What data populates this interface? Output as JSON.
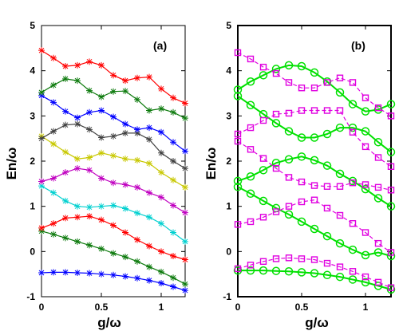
{
  "chart_data": [
    {
      "type": "line",
      "panel_label": "(a)",
      "xlabel": "g/ω",
      "ylabel": "En/ω",
      "xlim": [
        0,
        1.2
      ],
      "ylim": [
        -1,
        5
      ],
      "xticks": [
        "0",
        "0.5",
        "1"
      ],
      "yticks": [
        "-1",
        "0",
        "1",
        "2",
        "3",
        "4",
        "5"
      ],
      "x": [
        0,
        0.1,
        0.2,
        0.3,
        0.4,
        0.5,
        0.6,
        0.7,
        0.8,
        0.9,
        1.0,
        1.1,
        1.2
      ],
      "series": [
        {
          "color": "#0000ff",
          "marker": "star",
          "values": [
            -0.47,
            -0.46,
            -0.46,
            -0.47,
            -0.48,
            -0.5,
            -0.52,
            -0.55,
            -0.59,
            -0.64,
            -0.7,
            -0.78,
            -0.86
          ]
        },
        {
          "color": "#0c7a0c",
          "marker": "star",
          "values": [
            0.45,
            0.38,
            0.3,
            0.22,
            0.14,
            0.06,
            -0.04,
            -0.12,
            -0.22,
            -0.34,
            -0.45,
            -0.58,
            -0.72
          ]
        },
        {
          "color": "#ff0000",
          "marker": "star",
          "values": [
            0.52,
            0.62,
            0.74,
            0.76,
            0.78,
            0.7,
            0.58,
            0.42,
            0.26,
            0.12,
            0.0,
            -0.1,
            -0.18
          ]
        },
        {
          "color": "#00d0d0",
          "marker": "star",
          "values": [
            1.45,
            1.3,
            1.12,
            1.0,
            0.98,
            1.0,
            1.02,
            0.95,
            0.85,
            0.76,
            0.62,
            0.42,
            0.22
          ]
        },
        {
          "color": "#c000c0",
          "marker": "star",
          "values": [
            1.55,
            1.62,
            1.75,
            1.84,
            1.8,
            1.62,
            1.52,
            1.48,
            1.42,
            1.3,
            1.2,
            1.02,
            0.86
          ]
        },
        {
          "color": "#c8c800",
          "marker": "star",
          "values": [
            2.55,
            2.38,
            2.2,
            2.05,
            2.08,
            2.18,
            2.12,
            2.05,
            2.02,
            1.95,
            1.75,
            1.58,
            1.42
          ]
        },
        {
          "color": "#404040",
          "marker": "star",
          "values": [
            2.5,
            2.66,
            2.8,
            2.82,
            2.7,
            2.52,
            2.55,
            2.62,
            2.62,
            2.48,
            2.18,
            2.0,
            1.84
          ]
        },
        {
          "color": "#0000ff",
          "marker": "star",
          "values": [
            3.45,
            3.3,
            3.1,
            2.96,
            3.08,
            3.12,
            2.98,
            2.82,
            2.7,
            2.74,
            2.64,
            2.42,
            2.22
          ]
        },
        {
          "color": "#0c7a0c",
          "marker": "star",
          "values": [
            3.52,
            3.68,
            3.82,
            3.78,
            3.56,
            3.42,
            3.54,
            3.55,
            3.36,
            3.12,
            3.16,
            3.08,
            2.95
          ]
        },
        {
          "color": "#ff0000",
          "marker": "star",
          "values": [
            4.45,
            4.28,
            4.1,
            4.12,
            4.2,
            4.12,
            3.9,
            3.78,
            3.84,
            3.86,
            3.6,
            3.4,
            3.28
          ]
        }
      ]
    },
    {
      "type": "line",
      "panel_label": "(b)",
      "xlabel": "g/ω",
      "ylabel": "En/ω",
      "xlim": [
        0,
        1.2
      ],
      "ylim": [
        -1,
        5
      ],
      "xticks": [
        "0",
        "0.5",
        "1"
      ],
      "yticks": [
        "-1",
        "0",
        "1",
        "2",
        "3",
        "4",
        "5"
      ],
      "x": [
        0,
        0.1,
        0.2,
        0.3,
        0.4,
        0.5,
        0.6,
        0.7,
        0.8,
        0.9,
        1.0,
        1.1,
        1.2
      ],
      "series": [
        {
          "color": "#00e000",
          "marker": "circle",
          "style": "solid",
          "values": [
            -0.42,
            -0.42,
            -0.42,
            -0.43,
            -0.44,
            -0.46,
            -0.48,
            -0.52,
            -0.56,
            -0.62,
            -0.68,
            -0.76,
            -0.84
          ]
        },
        {
          "color": "#00e000",
          "marker": "circle",
          "style": "solid",
          "values": [
            1.43,
            1.28,
            1.12,
            0.96,
            0.82,
            0.66,
            0.5,
            0.34,
            0.18,
            0.04,
            -0.08,
            -0.02,
            -0.1
          ]
        },
        {
          "color": "#00e000",
          "marker": "circle",
          "style": "solid",
          "values": [
            1.56,
            1.66,
            1.8,
            1.96,
            2.04,
            2.1,
            2.02,
            1.9,
            1.72,
            1.56,
            1.38,
            1.18,
            1.0
          ]
        },
        {
          "color": "#00e000",
          "marker": "circle",
          "style": "solid",
          "values": [
            3.44,
            3.24,
            3.04,
            2.84,
            2.66,
            2.52,
            2.52,
            2.6,
            2.74,
            2.74,
            2.66,
            2.42,
            2.2
          ]
        },
        {
          "color": "#00e000",
          "marker": "circle",
          "style": "solid",
          "values": [
            3.58,
            3.76,
            3.9,
            4.04,
            4.12,
            4.1,
            3.96,
            3.76,
            3.52,
            3.26,
            3.1,
            3.14,
            3.26
          ]
        },
        {
          "color": "#e000e0",
          "marker": "square",
          "style": "dashed",
          "values": [
            -0.38,
            -0.3,
            -0.22,
            -0.16,
            -0.14,
            -0.16,
            -0.18,
            -0.26,
            -0.34,
            -0.44,
            -0.56,
            -0.68,
            -0.8
          ]
        },
        {
          "color": "#e000e0",
          "marker": "square",
          "style": "dashed",
          "values": [
            0.6,
            0.66,
            0.76,
            0.88,
            1.0,
            1.1,
            1.14,
            0.96,
            0.8,
            0.62,
            0.42,
            0.18,
            -0.02
          ]
        },
        {
          "color": "#e000e0",
          "marker": "square",
          "style": "dashed",
          "values": [
            2.44,
            2.26,
            2.06,
            1.84,
            1.64,
            1.54,
            1.46,
            1.44,
            1.44,
            1.52,
            1.48,
            1.42,
            1.36
          ]
        },
        {
          "color": "#e000e0",
          "marker": "square",
          "style": "dashed",
          "values": [
            2.6,
            2.74,
            2.9,
            3.04,
            3.06,
            3.12,
            3.12,
            3.12,
            3.12,
            2.64,
            2.32,
            2.08,
            1.88
          ]
        },
        {
          "color": "#e000e0",
          "marker": "square",
          "style": "dashed",
          "values": [
            4.4,
            4.26,
            4.08,
            3.94,
            3.74,
            3.62,
            3.62,
            3.74,
            3.84,
            3.74,
            3.4,
            3.18,
            3.0
          ]
        }
      ]
    }
  ]
}
